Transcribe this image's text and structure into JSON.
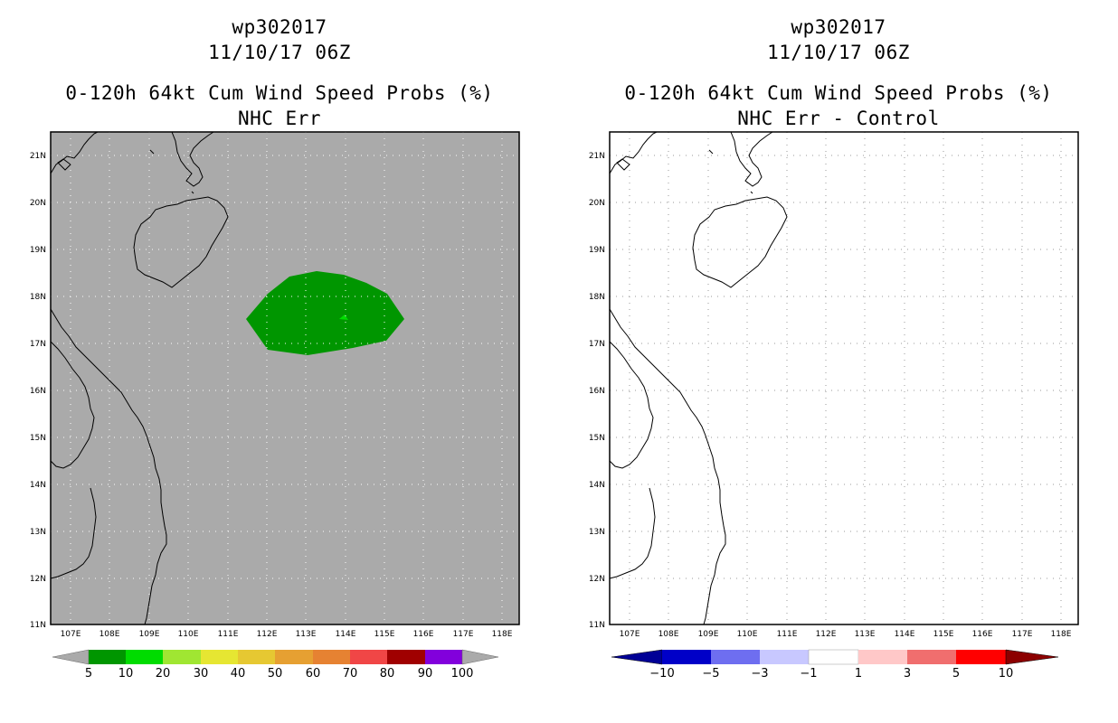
{
  "panels": [
    {
      "id": "left",
      "storm_id": "wp302017",
      "datetime": "11/10/17 06Z",
      "product": "0-120h 64kt Cum Wind Speed Probs (%)",
      "subtitle": "NHC Err",
      "background": "#aaaaaa",
      "colorbar": {
        "labels": [
          "5",
          "10",
          "20",
          "30",
          "40",
          "50",
          "60",
          "70",
          "80",
          "90",
          "100"
        ],
        "colors": [
          "#009600",
          "#00dc00",
          "#a0e632",
          "#e6e632",
          "#e6c832",
          "#e6a032",
          "#e68232",
          "#f04646",
          "#a00000",
          "#8200dc"
        ],
        "end_color": "#aaaaaa"
      }
    },
    {
      "id": "right",
      "storm_id": "wp302017",
      "datetime": "11/10/17 06Z",
      "product": "0-120h 64kt Cum Wind Speed Probs (%)",
      "subtitle": "NHC Err - Control",
      "background": "#ffffff",
      "colorbar": {
        "labels": [
          "−10",
          "−5",
          "−3",
          "−1",
          "1",
          "3",
          "5",
          "10"
        ],
        "colors": [
          "#0000c8",
          "#6e6ef0",
          "#c8c8ff",
          "#ffffff",
          "#ffc8c8",
          "#f06e6e",
          "#ff0000"
        ],
        "start_color": "#000096",
        "end_color": "#8c0000"
      }
    }
  ],
  "map": {
    "lat_labels": [
      "21N",
      "20N",
      "19N",
      "18N",
      "17N",
      "16N",
      "15N",
      "14N",
      "13N",
      "12N",
      "11N"
    ],
    "lon_labels": [
      "107E",
      "108E",
      "109E",
      "110E",
      "111E",
      "112E",
      "113E",
      "114E",
      "115E",
      "116E",
      "117E",
      "118E"
    ],
    "probability_area": {
      "level": "5-10",
      "color": "#009600"
    }
  }
}
